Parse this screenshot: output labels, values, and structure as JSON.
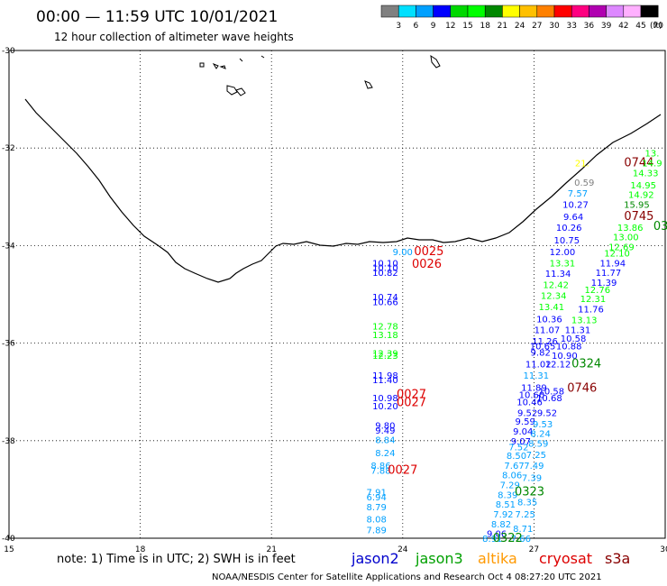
{
  "header": {
    "title": "00:00 — 11:59 UTC 10/01/2021",
    "subtitle": "12 hour collection of altimeter wave heights"
  },
  "colorbar": {
    "unit": "(ft)",
    "labels": [
      "3",
      "6",
      "9",
      "12",
      "15",
      "18",
      "21",
      "24",
      "27",
      "30",
      "33",
      "36",
      "39",
      "42",
      "45",
      "70"
    ],
    "colors": [
      "#808080",
      "#00e0ff",
      "#00a0ff",
      "#0000ff",
      "#00d800",
      "#00ff00",
      "#008800",
      "#ffff00",
      "#ffc000",
      "#ff8000",
      "#ff0000",
      "#ff0080",
      "#b000b0",
      "#dd88ff",
      "#ffb0ff",
      "#000000"
    ]
  },
  "footer": {
    "note": "note:  1) Time is in UTC;  2) SWH is in feet",
    "satellites": [
      {
        "name": "jason2",
        "color": "#0000cc"
      },
      {
        "name": "jason3",
        "color": "#00a000"
      },
      {
        "name": "altika",
        "color": "#ff9900"
      },
      {
        "name": "cryosat",
        "color": "#dd0000"
      },
      {
        "name": "s3a",
        "color": "#880000"
      }
    ],
    "credit": "NOAA/NESDIS Center for Satellite Applications and Research    Oct  4 08:27:20 UTC 2021"
  },
  "chart_data": {
    "type": "scatter",
    "xlim": [
      15,
      30
    ],
    "ylim": [
      -40,
      -30
    ],
    "x_ticks": [
      15,
      18,
      21,
      24,
      27,
      30
    ],
    "x_tick_labels": [
      "15",
      "18",
      "21",
      "24",
      "27",
      "30"
    ],
    "y_ticks": [
      -30,
      -32,
      -34,
      -36,
      -38,
      -40
    ],
    "y_tick_labels": [
      "-30",
      "-32",
      "-34",
      "-36",
      "-38",
      "-40"
    ],
    "grid": true,
    "labels": [
      {
        "x": 24.0,
        "y": -34.12,
        "text": "9.00",
        "color": "#00a0ff"
      },
      {
        "x": 23.6,
        "y": -34.35,
        "text": "10.10",
        "color": "#0000ff"
      },
      {
        "x": 23.6,
        "y": -34.45,
        "text": "10.10",
        "color": "#0000ff"
      },
      {
        "x": 23.6,
        "y": -34.55,
        "text": "10.82",
        "color": "#0000ff"
      },
      {
        "x": 23.6,
        "y": -35.05,
        "text": "10.74",
        "color": "#0000ff"
      },
      {
        "x": 23.6,
        "y": -35.15,
        "text": "10.66",
        "color": "#0000ff"
      },
      {
        "x": 23.6,
        "y": -35.65,
        "text": "12.78",
        "color": "#00ff00"
      },
      {
        "x": 23.6,
        "y": -35.82,
        "text": "13.18",
        "color": "#00ff00"
      },
      {
        "x": 23.6,
        "y": -36.2,
        "text": "12.39",
        "color": "#00ff00"
      },
      {
        "x": 23.6,
        "y": -36.25,
        "text": "12.23",
        "color": "#00ff00"
      },
      {
        "x": 23.6,
        "y": -36.65,
        "text": "11.98",
        "color": "#0000ff"
      },
      {
        "x": 23.6,
        "y": -36.75,
        "text": "11.40",
        "color": "#0000ff"
      },
      {
        "x": 23.6,
        "y": -37.12,
        "text": "10.98",
        "color": "#0000ff"
      },
      {
        "x": 23.6,
        "y": -37.28,
        "text": "10.20",
        "color": "#0000ff"
      },
      {
        "x": 23.6,
        "y": -37.68,
        "text": "9.80",
        "color": "#0000ff"
      },
      {
        "x": 23.6,
        "y": -37.78,
        "text": "9.49",
        "color": "#0000ff"
      },
      {
        "x": 23.6,
        "y": -37.98,
        "text": "8.84",
        "color": "#00a0ff"
      },
      {
        "x": 23.6,
        "y": -38.24,
        "text": "8.24",
        "color": "#00a0ff"
      },
      {
        "x": 23.5,
        "y": -38.5,
        "text": "8.86",
        "color": "#00a0ff"
      },
      {
        "x": 23.5,
        "y": -38.6,
        "text": "7.88",
        "color": "#00a0ff"
      },
      {
        "x": 23.4,
        "y": -39.05,
        "text": "7.91",
        "color": "#00a0ff"
      },
      {
        "x": 23.4,
        "y": -39.15,
        "text": "6.94",
        "color": "#00a0ff"
      },
      {
        "x": 23.4,
        "y": -39.35,
        "text": "8.79",
        "color": "#00a0ff"
      },
      {
        "x": 23.4,
        "y": -39.6,
        "text": "8.08",
        "color": "#00a0ff"
      },
      {
        "x": 23.4,
        "y": -39.82,
        "text": "7.89",
        "color": "#00a0ff"
      },
      {
        "x": 29.4,
        "y": -32.3,
        "text": "0744",
        "color": "#880000",
        "big": true
      },
      {
        "x": 28.1,
        "y": -32.3,
        "text": "21.",
        "color": "#ffff00"
      },
      {
        "x": 28.15,
        "y": -32.7,
        "text": "0.59",
        "color": "#808080"
      },
      {
        "x": 28.0,
        "y": -32.92,
        "text": "7.57",
        "color": "#00a0ff"
      },
      {
        "x": 27.95,
        "y": -33.15,
        "text": "10.27",
        "color": "#0000ff"
      },
      {
        "x": 27.9,
        "y": -33.4,
        "text": "9.64",
        "color": "#0000ff"
      },
      {
        "x": 27.8,
        "y": -33.62,
        "text": "10.26",
        "color": "#0000ff"
      },
      {
        "x": 27.75,
        "y": -33.88,
        "text": "10.75",
        "color": "#0000ff"
      },
      {
        "x": 27.65,
        "y": -34.12,
        "text": "12.00",
        "color": "#0000ff"
      },
      {
        "x": 27.65,
        "y": -34.35,
        "text": "13.31",
        "color": "#00ff00"
      },
      {
        "x": 27.55,
        "y": -34.57,
        "text": "11.34",
        "color": "#0000ff"
      },
      {
        "x": 27.5,
        "y": -34.8,
        "text": "12.42",
        "color": "#00ff00"
      },
      {
        "x": 27.45,
        "y": -35.02,
        "text": "12.34",
        "color": "#00ff00"
      },
      {
        "x": 27.4,
        "y": -35.25,
        "text": "13.41",
        "color": "#00ff00"
      },
      {
        "x": 27.35,
        "y": -35.5,
        "text": "10.36",
        "color": "#0000ff"
      },
      {
        "x": 27.3,
        "y": -35.72,
        "text": "11.07",
        "color": "#0000ff"
      },
      {
        "x": 27.25,
        "y": -35.95,
        "text": "11.26",
        "color": "#0000ff"
      },
      {
        "x": 27.2,
        "y": -36.05,
        "text": "10.65",
        "color": "#0000ff"
      },
      {
        "x": 27.15,
        "y": -36.18,
        "text": "9.82",
        "color": "#0000ff"
      },
      {
        "x": 27.1,
        "y": -36.42,
        "text": "11.02",
        "color": "#0000ff"
      },
      {
        "x": 27.05,
        "y": -36.65,
        "text": "11.31",
        "color": "#00a0ff"
      },
      {
        "x": 27.0,
        "y": -36.9,
        "text": "11.89",
        "color": "#0000ff"
      },
      {
        "x": 26.95,
        "y": -37.05,
        "text": "10.60",
        "color": "#0000ff"
      },
      {
        "x": 26.9,
        "y": -37.2,
        "text": "10.46",
        "color": "#0000ff"
      },
      {
        "x": 26.85,
        "y": -37.42,
        "text": "9.52",
        "color": "#0000ff"
      },
      {
        "x": 26.8,
        "y": -37.6,
        "text": "9.59",
        "color": "#0000ff"
      },
      {
        "x": 26.75,
        "y": -37.8,
        "text": "9.04",
        "color": "#0000ff"
      },
      {
        "x": 26.7,
        "y": -38.0,
        "text": "9.07",
        "color": "#0000ff"
      },
      {
        "x": 26.65,
        "y": -38.12,
        "text": "7.52",
        "color": "#00a0ff"
      },
      {
        "x": 26.6,
        "y": -38.3,
        "text": "8.50",
        "color": "#00a0ff"
      },
      {
        "x": 26.55,
        "y": -38.5,
        "text": "7.67",
        "color": "#00a0ff"
      },
      {
        "x": 26.5,
        "y": -38.7,
        "text": "8.06",
        "color": "#00a0ff"
      },
      {
        "x": 26.45,
        "y": -38.9,
        "text": "7.29",
        "color": "#00a0ff"
      },
      {
        "x": 26.4,
        "y": -39.1,
        "text": "8.39",
        "color": "#00a0ff"
      },
      {
        "x": 26.35,
        "y": -39.3,
        "text": "8.51",
        "color": "#00a0ff"
      },
      {
        "x": 26.3,
        "y": -39.5,
        "text": "7.92",
        "color": "#00a0ff"
      },
      {
        "x": 26.25,
        "y": -39.7,
        "text": "8.82",
        "color": "#00a0ff"
      },
      {
        "x": 26.15,
        "y": -39.9,
        "text": "9.06",
        "color": "#0000ff"
      },
      {
        "x": 26.05,
        "y": -40.0,
        "text": "8.91",
        "color": "#00a0ff"
      },
      {
        "x": 29.7,
        "y": -32.1,
        "text": "13.",
        "color": "#00ff00"
      },
      {
        "x": 29.7,
        "y": -32.3,
        "text": "14.9",
        "color": "#00ff00"
      },
      {
        "x": 29.55,
        "y": -32.5,
        "text": "14.33",
        "color": "#00ff00"
      },
      {
        "x": 29.5,
        "y": -32.75,
        "text": "14.95",
        "color": "#00ff00"
      },
      {
        "x": 29.45,
        "y": -32.95,
        "text": "14.92",
        "color": "#00ff00"
      },
      {
        "x": 29.35,
        "y": -33.15,
        "text": "15.95",
        "color": "#008800"
      },
      {
        "x": 29.4,
        "y": -33.4,
        "text": "0745",
        "color": "#880000",
        "big": true
      },
      {
        "x": 29.9,
        "y": -33.6,
        "text": "03",
        "color": "#008800",
        "big": true
      },
      {
        "x": 29.2,
        "y": -33.62,
        "text": "13.86",
        "color": "#00ff00"
      },
      {
        "x": 29.1,
        "y": -33.82,
        "text": "13.00",
        "color": "#00ff00"
      },
      {
        "x": 29.0,
        "y": -34.02,
        "text": "12.69",
        "color": "#00ff00"
      },
      {
        "x": 28.9,
        "y": -34.15,
        "text": "12.10",
        "color": "#00ff00"
      },
      {
        "x": 28.8,
        "y": -34.35,
        "text": "11.94",
        "color": "#0000ff"
      },
      {
        "x": 28.7,
        "y": -34.55,
        "text": "11.77",
        "color": "#0000ff"
      },
      {
        "x": 28.6,
        "y": -34.75,
        "text": "11.39",
        "color": "#0000ff"
      },
      {
        "x": 28.45,
        "y": -34.9,
        "text": "12.76",
        "color": "#00ff00"
      },
      {
        "x": 28.35,
        "y": -35.08,
        "text": "12.31",
        "color": "#00ff00"
      },
      {
        "x": 28.3,
        "y": -35.3,
        "text": "11.76",
        "color": "#0000ff"
      },
      {
        "x": 28.15,
        "y": -35.52,
        "text": "13.13",
        "color": "#00ff00"
      },
      {
        "x": 28.0,
        "y": -35.72,
        "text": "11.31",
        "color": "#0000ff"
      },
      {
        "x": 27.9,
        "y": -35.9,
        "text": "10.58",
        "color": "#0000ff"
      },
      {
        "x": 27.8,
        "y": -36.05,
        "text": "10.88",
        "color": "#0000ff"
      },
      {
        "x": 27.7,
        "y": -36.25,
        "text": "10.90",
        "color": "#0000ff"
      },
      {
        "x": 28.2,
        "y": -36.42,
        "text": "0324",
        "color": "#008800",
        "big": true
      },
      {
        "x": 27.55,
        "y": -36.42,
        "text": "12.12",
        "color": "#0000ff"
      },
      {
        "x": 28.1,
        "y": -36.92,
        "text": "0746",
        "color": "#880000",
        "big": true
      },
      {
        "x": 27.4,
        "y": -36.98,
        "text": "10.58",
        "color": "#0000ff"
      },
      {
        "x": 27.35,
        "y": -37.12,
        "text": "10.68",
        "color": "#0000ff"
      },
      {
        "x": 27.3,
        "y": -37.42,
        "text": "9.52",
        "color": "#0000ff"
      },
      {
        "x": 27.2,
        "y": -37.65,
        "text": "9.53",
        "color": "#00a0ff"
      },
      {
        "x": 27.15,
        "y": -37.85,
        "text": "8.24",
        "color": "#00a0ff"
      },
      {
        "x": 27.1,
        "y": -38.05,
        "text": "8.59",
        "color": "#00a0ff"
      },
      {
        "x": 27.05,
        "y": -38.28,
        "text": "7.25",
        "color": "#00a0ff"
      },
      {
        "x": 27.0,
        "y": -38.5,
        "text": "7.49",
        "color": "#00a0ff"
      },
      {
        "x": 26.95,
        "y": -38.75,
        "text": "7.39",
        "color": "#00a0ff"
      },
      {
        "x": 26.9,
        "y": -39.05,
        "text": "0323",
        "color": "#008800",
        "big": true
      },
      {
        "x": 26.85,
        "y": -39.25,
        "text": "8.35",
        "color": "#00a0ff"
      },
      {
        "x": 26.8,
        "y": -39.5,
        "text": "7.25",
        "color": "#00a0ff"
      },
      {
        "x": 26.75,
        "y": -39.8,
        "text": "8.71",
        "color": "#00a0ff"
      },
      {
        "x": 26.7,
        "y": -40.0,
        "text": "7.66",
        "color": "#00a0ff"
      },
      {
        "x": 26.4,
        "y": -40.0,
        "text": "0322",
        "color": "#008800",
        "big": true
      },
      {
        "x": 24.6,
        "y": -34.12,
        "text": "0025",
        "color": "#dd0000",
        "big": true
      },
      {
        "x": 24.55,
        "y": -34.38,
        "text": "0026",
        "color": "#dd0000",
        "big": true
      },
      {
        "x": 24.2,
        "y": -37.05,
        "text": "0027",
        "color": "#dd0000",
        "big": true
      },
      {
        "x": 24.2,
        "y": -37.22,
        "text": "0027",
        "color": "#dd0000",
        "big": true
      },
      {
        "x": 24.0,
        "y": -38.6,
        "text": "0027",
        "color": "#dd0000",
        "big": true
      }
    ]
  }
}
